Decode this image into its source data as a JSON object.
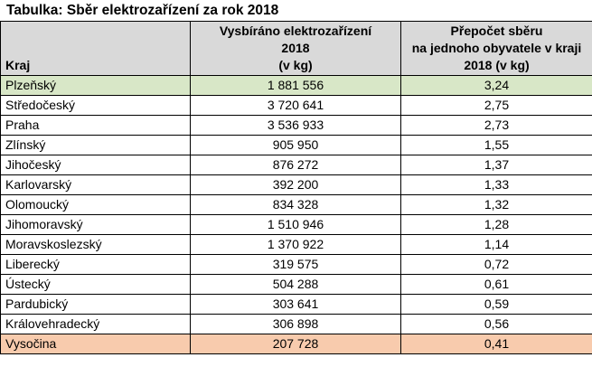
{
  "title": "Tabulka: Sběr elektrozařízení za rok 2018",
  "columns": {
    "kraj": "Kraj",
    "collected": [
      "Vysbíráno elektrozařízení",
      "2018",
      "(v kg)"
    ],
    "per_capita": [
      "Přepočet sběru",
      "na jednoho obyvatele v kraji",
      "2018 (v kg)"
    ]
  },
  "rows": [
    {
      "kraj": "Plzeňský",
      "collected": "1 881 556",
      "per_capita": "3,24",
      "highlight": "green"
    },
    {
      "kraj": "Středočeský",
      "collected": "3 720 641",
      "per_capita": "2,75"
    },
    {
      "kraj": "Praha",
      "collected": "3 536 933",
      "per_capita": "2,73"
    },
    {
      "kraj": "Zlínský",
      "collected": "905 950",
      "per_capita": "1,55"
    },
    {
      "kraj": "Jihočeský",
      "collected": "876 272",
      "per_capita": "1,37"
    },
    {
      "kraj": "Karlovarský",
      "collected": "392 200",
      "per_capita": "1,33"
    },
    {
      "kraj": "Olomoucký",
      "collected": "834 328",
      "per_capita": "1,32"
    },
    {
      "kraj": "Jihomoravský",
      "collected": "1 510 946",
      "per_capita": "1,28"
    },
    {
      "kraj": "Moravskoslezský",
      "collected": "1 370 922",
      "per_capita": "1,14"
    },
    {
      "kraj": "Liberecký",
      "collected": "319 575",
      "per_capita": "0,72"
    },
    {
      "kraj": "Ústecký",
      "collected": "504 288",
      "per_capita": "0,61"
    },
    {
      "kraj": "Pardubický",
      "collected": "303 641",
      "per_capita": "0,59"
    },
    {
      "kraj": "Královehradecký",
      "collected": "306 898",
      "per_capita": "0,56"
    },
    {
      "kraj": "Vysočina",
      "collected": "207 728",
      "per_capita": "0,41",
      "highlight": "orange"
    }
  ],
  "colors": {
    "header_bg": "#d9d9d9",
    "highlight_top": "#d8e7c7",
    "highlight_bottom": "#f8cbad"
  }
}
